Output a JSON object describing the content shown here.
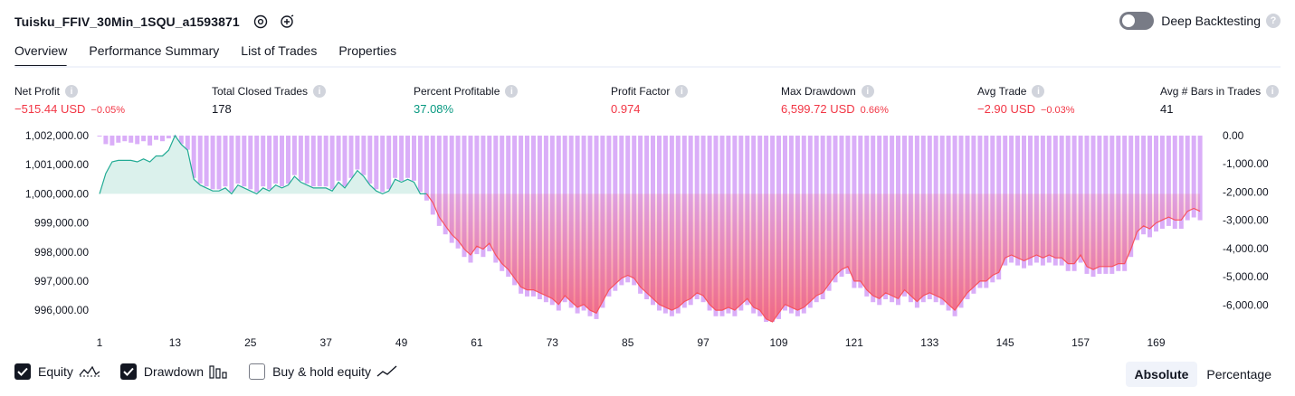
{
  "header": {
    "strategy_name": "Tuisku_FFIV_30Min_1SQU_a1593871",
    "deep_backtesting_label": "Deep Backtesting",
    "help_glyph": "?"
  },
  "tabs": [
    {
      "label": "Overview"
    },
    {
      "label": "Performance Summary"
    },
    {
      "label": "List of Trades"
    },
    {
      "label": "Properties"
    }
  ],
  "metrics": [
    {
      "label": "Net Profit",
      "value": "−515.44 USD",
      "sub": "−0.05%",
      "tone": "neg"
    },
    {
      "label": "Total Closed Trades",
      "value": "178",
      "sub": "",
      "tone": ""
    },
    {
      "label": "Percent Profitable",
      "value": "37.08%",
      "sub": "",
      "tone": "pos"
    },
    {
      "label": "Profit Factor",
      "value": "0.974",
      "sub": "",
      "tone": "neg"
    },
    {
      "label": "Max Drawdown",
      "value": "6,599.72 USD",
      "sub": "0.66%",
      "tone": "neg"
    },
    {
      "label": "Avg Trade",
      "value": "−2.90 USD",
      "sub": "−0.03%",
      "tone": "neg"
    },
    {
      "label": "Avg # Bars in Trades",
      "value": "41",
      "sub": "",
      "tone": ""
    }
  ],
  "info_glyph": "i",
  "colors": {
    "equity_line_up": "#22ab94",
    "equity_line_down": "#f7525f",
    "equity_fill_up": "#d7f0ea",
    "equity_fill_down": "#f7525f",
    "drawdown_bar": "#ce93f5",
    "negative": "#f23645",
    "positive": "#089981"
  },
  "chart_data": {
    "type": "area",
    "left_axis": {
      "ticks": [
        "1,002,000.00",
        "1,001,000.00",
        "1,000,000.00",
        "999,000.00",
        "998,000.00",
        "997,000.00",
        "996,000.00"
      ],
      "values": [
        1002000,
        1001000,
        1000000,
        999000,
        998000,
        997000,
        996000
      ]
    },
    "right_axis": {
      "ticks": [
        "0.00",
        "-1,000.00",
        "-2,000.00",
        "-3,000.00",
        "-4,000.00",
        "-5,000.00",
        "-6,000.00"
      ],
      "values": [
        0,
        -1000,
        -2000,
        -3000,
        -4000,
        -5000,
        -6000
      ]
    },
    "x_ticks": [
      "1",
      "13",
      "25",
      "37",
      "49",
      "61",
      "73",
      "85",
      "97",
      "109",
      "121",
      "133",
      "145",
      "157",
      "169"
    ],
    "x_tick_values": [
      1,
      13,
      25,
      37,
      49,
      61,
      73,
      85,
      97,
      109,
      121,
      133,
      145,
      157,
      169
    ],
    "x_range": [
      1,
      178
    ],
    "baseline": 1000000,
    "series": [
      {
        "name": "Equity",
        "values": [
          1000000,
          1000700,
          1001100,
          1001150,
          1001150,
          1001150,
          1001100,
          1001200,
          1001100,
          1001300,
          1001300,
          1001500,
          1002000,
          1001700,
          1001500,
          1000500,
          1000300,
          1000200,
          1000100,
          1000100,
          1000200,
          1000000,
          1000300,
          1000200,
          1000100,
          1000000,
          1000200,
          1000100,
          1000300,
          1000200,
          1000300,
          1000600,
          1000400,
          1000300,
          1000200,
          1000200,
          1000200,
          1000100,
          1000400,
          1000200,
          1000500,
          1000800,
          1000600,
          1000300,
          1000100,
          1000000,
          1000100,
          1000500,
          1000400,
          1000500,
          1000400,
          1000000,
          1000000,
          999700,
          999200,
          998900,
          998600,
          998400,
          998100,
          997900,
          998200,
          998100,
          998300,
          997900,
          997600,
          997400,
          997100,
          996800,
          996700,
          996700,
          996600,
          996500,
          996400,
          996200,
          996500,
          996300,
          996100,
          996200,
          996000,
          995900,
          996300,
          996700,
          996900,
          997100,
          997200,
          997100,
          996800,
          996600,
          996400,
          996200,
          996100,
          996000,
          996100,
          996300,
          996400,
          996600,
          996500,
          996200,
          996000,
          996000,
          996100,
          996000,
          996200,
          996400,
          996100,
          996000,
          995700,
          995600,
          995900,
          996200,
          996100,
          996000,
          996100,
          996300,
          996500,
          996600,
          996900,
          997200,
          997400,
          997500,
          997000,
          997000,
          996700,
          996500,
          996400,
          996600,
          996500,
          996400,
          996700,
          996500,
          996300,
          996500,
          996600,
          996500,
          996400,
          996200,
          996000,
          996300,
          996600,
          996800,
          997000,
          997000,
          997200,
          997300,
          997800,
          997900,
          997800,
          997700,
          997800,
          997900,
          997800,
          997900,
          997800,
          997800,
          997600,
          997600,
          997900,
          997500,
          997400,
          997500,
          997500,
          997500,
          997600,
          997600,
          998100,
          998700,
          998900,
          998800,
          999000,
          999100,
          999200,
          999100,
          999100,
          999400,
          999500,
          999400
        ],
        "ylim": [
          995600,
          1002000
        ]
      },
      {
        "name": "Drawdown",
        "values": [
          0,
          -300,
          -350,
          -250,
          -200,
          -250,
          -300,
          -200,
          -350,
          -150,
          -200,
          -100,
          0,
          -300,
          -500,
          -1500,
          -1700,
          -1800,
          -1900,
          -1900,
          -1800,
          -2000,
          -1700,
          -1800,
          -1900,
          -2000,
          -1800,
          -1900,
          -1700,
          -1800,
          -1700,
          -1400,
          -1600,
          -1700,
          -1800,
          -1800,
          -1800,
          -1900,
          -1600,
          -1800,
          -1500,
          -1200,
          -1400,
          -1700,
          -1900,
          -2000,
          -1900,
          -1500,
          -1600,
          -1500,
          -1600,
          -2000,
          -2300,
          -2800,
          -3200,
          -3500,
          -3800,
          -4000,
          -4300,
          -4500,
          -4200,
          -4300,
          -4100,
          -4500,
          -4800,
          -5000,
          -5300,
          -5600,
          -5700,
          -5700,
          -5800,
          -5900,
          -6000,
          -6200,
          -5900,
          -6100,
          -6300,
          -6200,
          -6400,
          -6500,
          -6100,
          -5700,
          -5500,
          -5300,
          -5200,
          -5300,
          -5600,
          -5800,
          -6000,
          -6200,
          -6300,
          -6400,
          -6300,
          -6100,
          -6000,
          -5800,
          -5900,
          -6200,
          -6400,
          -6400,
          -6300,
          -6400,
          -6200,
          -6000,
          -6300,
          -6400,
          -6600,
          -6600,
          -6500,
          -6200,
          -6300,
          -6400,
          -6300,
          -6100,
          -5900,
          -5800,
          -5500,
          -5200,
          -5000,
          -4900,
          -5400,
          -5400,
          -5700,
          -5900,
          -6000,
          -5800,
          -5900,
          -6000,
          -5700,
          -5900,
          -6100,
          -5900,
          -5800,
          -5900,
          -6000,
          -6200,
          -6400,
          -6100,
          -5800,
          -5600,
          -5400,
          -5400,
          -5200,
          -5100,
          -4600,
          -4500,
          -4600,
          -4700,
          -4600,
          -4500,
          -4600,
          -4500,
          -4600,
          -4600,
          -4800,
          -4800,
          -4500,
          -4900,
          -5000,
          -4900,
          -4900,
          -4900,
          -4800,
          -4800,
          -4300,
          -3700,
          -3500,
          -3600,
          -3400,
          -3300,
          -3200,
          -3300,
          -3300,
          -3000,
          -2900,
          -3000
        ],
        "ylim": [
          -6600,
          0
        ]
      }
    ]
  },
  "legend": [
    {
      "label": "Equity",
      "checked": true,
      "icon": "equity-zigzag-icon"
    },
    {
      "label": "Drawdown",
      "checked": true,
      "icon": "drawdown-bars-icon"
    },
    {
      "label": "Buy & hold equity",
      "checked": false,
      "icon": "buy-hold-line-icon"
    }
  ],
  "mode_switch": {
    "absolute_label": "Absolute",
    "percentage_label": "Percentage",
    "selected": "Absolute"
  }
}
